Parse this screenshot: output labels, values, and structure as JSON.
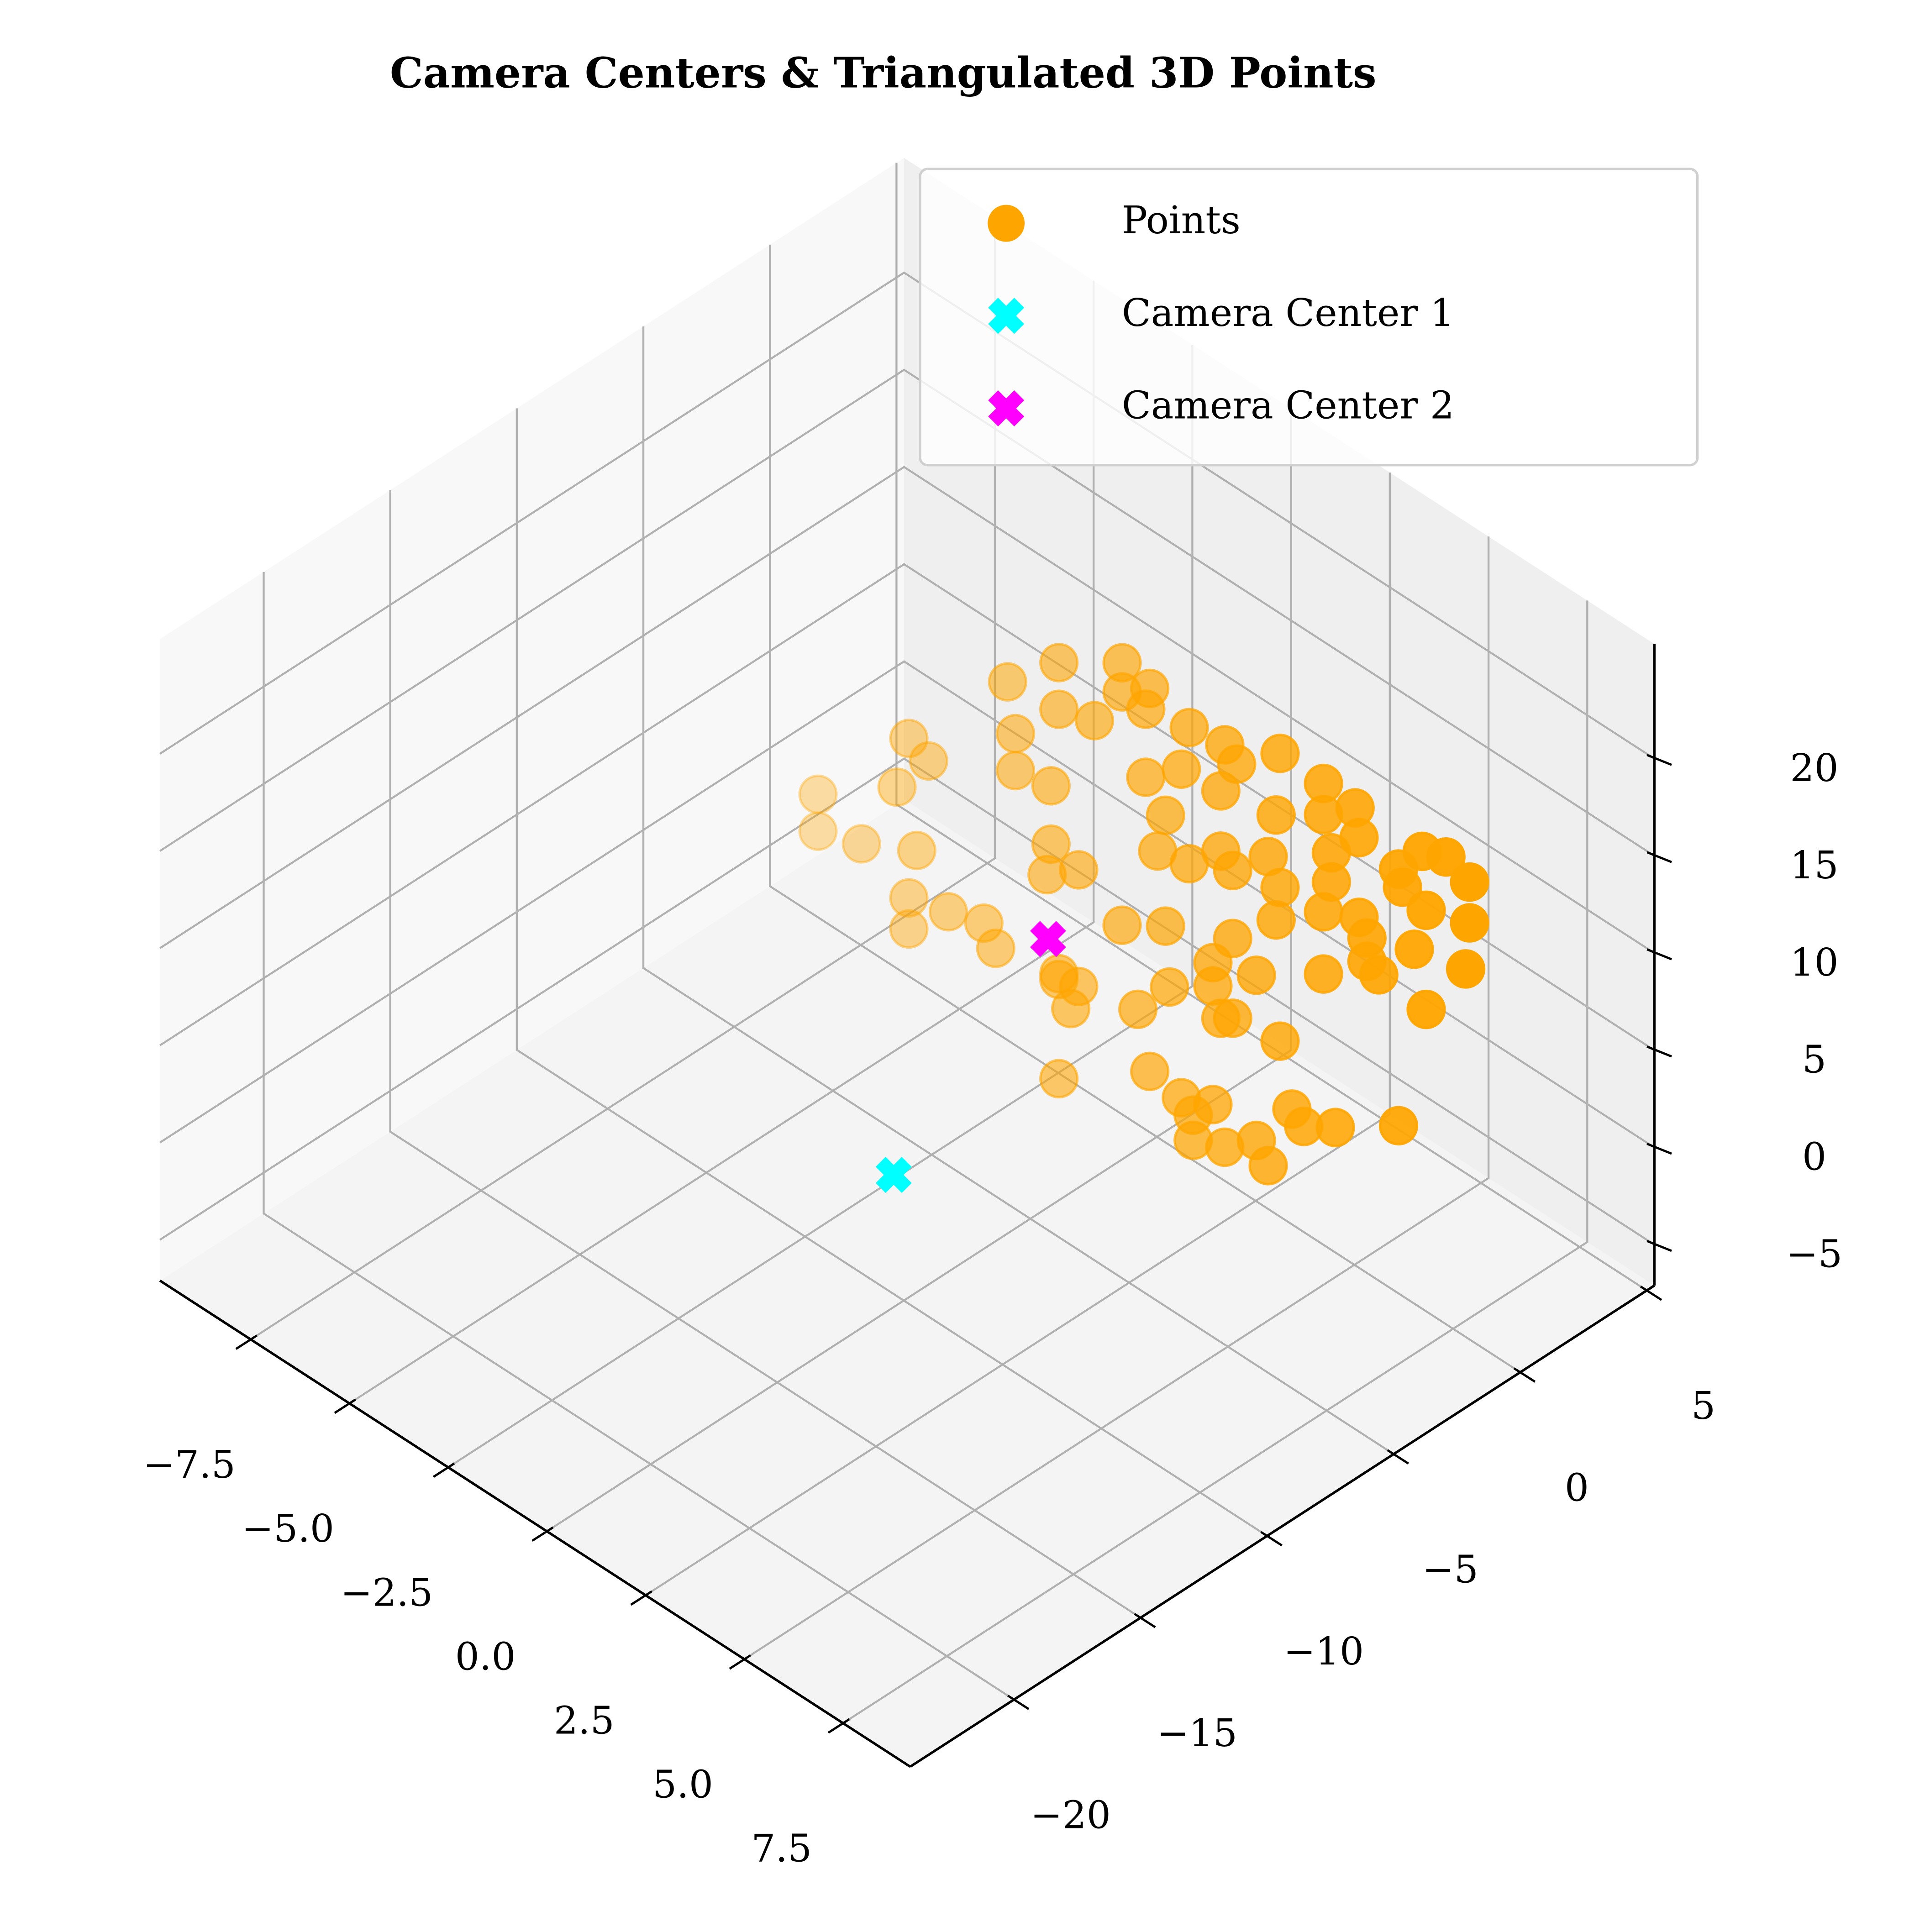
{
  "chart_data": {
    "type": "scatter3d",
    "title": "Camera Centers & Triangulated 3D Points",
    "xlim": [
      -9.8,
      9.2
    ],
    "ylim": [
      -24.1,
      5.3
    ],
    "zlim": [
      -7.1,
      25.9
    ],
    "xticks": [
      {
        "value": -7.5,
        "label": "−7.5"
      },
      {
        "value": -5,
        "label": "−5.0"
      },
      {
        "value": -2.5,
        "label": "−2.5"
      },
      {
        "value": 0,
        "label": "0.0"
      },
      2.5,
      {
        "value": 5,
        "label": "5.0"
      },
      7.5
    ],
    "yticks": [
      {
        "value": -20,
        "label": "−20"
      },
      {
        "value": -15,
        "label": "−15"
      },
      {
        "value": -10,
        "label": "−10"
      },
      {
        "value": -5,
        "label": "−5"
      },
      0,
      5
    ],
    "zticks": [
      {
        "value": -5,
        "label": "−5"
      },
      0,
      5,
      10,
      15,
      20
    ],
    "grid": true,
    "legend": "upper right",
    "series": [
      {
        "name": "Points",
        "color": "#ffa500",
        "marker": "o",
        "x": [
          -2.5,
          -1.2,
          0.4,
          0.4,
          1.1,
          -1.2,
          -0.3,
          1.0,
          2.1,
          3.0,
          4.4,
          1.9,
          2.9,
          3.3,
          1.0,
          1.5,
          4.3,
          5.5,
          5.5,
          6.3,
          6.4,
          5.7,
          1.3,
          2.1,
          2.9,
          4.1,
          4.4,
          3.2,
          8.0,
          8.6,
          9.2,
          9.2,
          8.1,
          7.5,
          7.8,
          9.1,
          8.1,
          6.9,
          6.4,
          6.6,
          5.5,
          5.5,
          5.7,
          3.8,
          2.7,
          2.9,
          1.6,
          1.5,
          0.4,
          0.8,
          -0.7,
          -1.2,
          -1.5,
          -1.4,
          -0.7,
          -1.2,
          1.1,
          1.9,
          2.7,
          4.4,
          2.2,
          3.0,
          3.8,
          4.1,
          4.7,
          5.0,
          5.8,
          7.4,
          2.2,
          -5.0,
          -4.5,
          -5.3,
          -7.3,
          -7.3,
          -6.2,
          -4.8,
          -5.0,
          -5.0,
          -4.0,
          -3.1,
          -2.8,
          -1.2,
          -0.9,
          -2.3,
          -2.3,
          -1.4,
          2.7,
          3.2,
          3.2,
          4.3,
          6.6,
          7.4
        ],
        "y": [
          -2,
          -2,
          -2,
          -2,
          -2,
          -2,
          -2,
          -2,
          -2,
          -2,
          -2,
          -2,
          -2,
          -2,
          -2,
          -2,
          -2,
          -2,
          -2,
          -2,
          -2,
          -2,
          -2,
          -2,
          -2,
          -2,
          -2,
          -2,
          -2,
          -2,
          -2,
          -2,
          -2,
          -2,
          -2,
          -2,
          -2,
          -2,
          -2,
          -2,
          -2,
          -2,
          -2,
          -2,
          -2,
          -2,
          -2,
          -2,
          -2,
          -2,
          -2,
          -2,
          -2,
          -2,
          -2,
          -2,
          -2,
          -2,
          -2,
          -2,
          -2,
          -2,
          -2,
          -2,
          -2,
          -2,
          -2,
          -2,
          -2,
          -2,
          -2,
          -2,
          -2,
          -2,
          -2,
          -2,
          -2,
          -2,
          -2,
          -2,
          -2,
          -2,
          -2,
          -2,
          -2,
          -2,
          -2,
          -2,
          -2,
          -2,
          -2,
          -2
        ],
        "z": [
          14.7,
          17.4,
          19.5,
          18.0,
          19.1,
          15.0,
          15.6,
          17.9,
          18.4,
          18.7,
          20.1,
          16.0,
          16.2,
          18.1,
          14.4,
          13.1,
          16.8,
          20.0,
          18.4,
          19.8,
          18.4,
          16.7,
          11.0,
          11.4,
          13.1,
          14.4,
          13.2,
          12.5,
          19.8,
          20.3,
          19.8,
          17.7,
          16.9,
          17.3,
          14.5,
          15.2,
          11.8,
          12.0,
          14.3,
          12.3,
          10.2,
          13.4,
          15.2,
          7.9,
          5.9,
          4.5,
          4.4,
          7.4,
          6.0,
          2.2,
          1.4,
          1.4,
          6.1,
          7.8,
          7.4,
          -4.0,
          -0.6,
          -0.9,
          -0.2,
          5.3,
          -2.7,
          -2.0,
          -0.6,
          -1.5,
          2.2,
          1.7,
          2.7,
          4.9,
          -1.4,
          8.5,
          8.0,
          5.6,
          2.6,
          0.7,
          1.5,
          3.0,
          0.3,
          -1.3,
          0.9,
          1.5,
          0.6,
          1.1,
          0.0,
          12.3,
          10.4,
          10.8,
          7.1,
          4.9,
          9.0,
          11.4,
          13.5,
          18.1
        ]
      },
      {
        "name": "Camera Center 1",
        "color": "#00ffff",
        "marker": "X",
        "x": [
          0
        ],
        "y": [
          -10.4
        ],
        "z": [
          -0.3
        ]
      },
      {
        "name": "Camera Center 2",
        "color": "#ff00ff",
        "marker": "X",
        "x": [
          0
        ],
        "y": [
          -4.3
        ],
        "z": [
          6.7
        ]
      }
    ]
  }
}
